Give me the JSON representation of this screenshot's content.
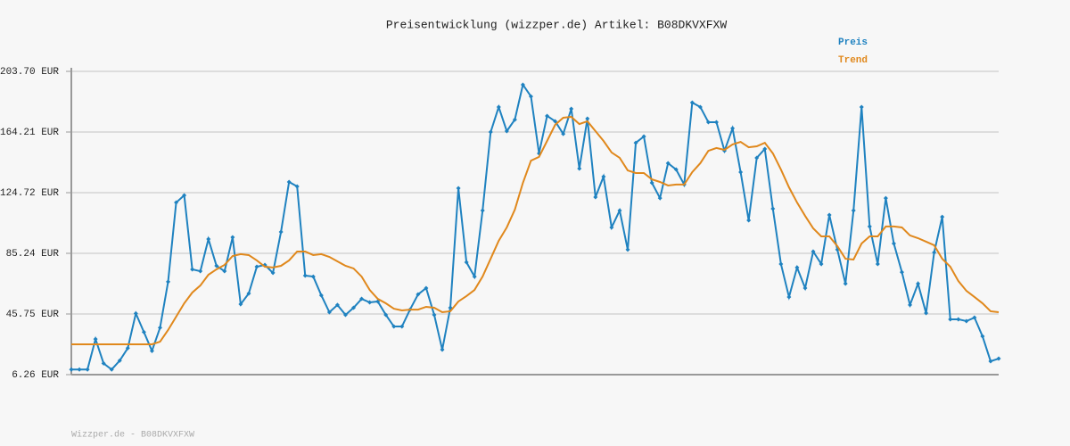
{
  "chart_data": {
    "type": "line",
    "title": "Preisentwicklung (wizzper.de) Artikel: B08DKVXFXW",
    "footer": "Wizzper.de - B08DKVXFXW",
    "ylim": [
      6.26,
      203.7
    ],
    "yticks": [
      {
        "value": 6.26,
        "label": "6.26 EUR"
      },
      {
        "value": 45.75,
        "label": "45.75 EUR"
      },
      {
        "value": 85.24,
        "label": "85.24 EUR"
      },
      {
        "value": 124.72,
        "label": "124.72 EUR"
      },
      {
        "value": 164.21,
        "label": "164.21 EUR"
      },
      {
        "value": 203.7,
        "label": "203.70 EUR"
      }
    ],
    "grid": true,
    "legend": "top-right",
    "series": [
      {
        "name": "Preis",
        "color": "#1f82c0",
        "markers": true,
        "values": [
          9.6,
          9.6,
          9.6,
          29.4,
          13.6,
          9.6,
          15.4,
          23.5,
          46.1,
          34.0,
          21.7,
          36.8,
          66.7,
          118.3,
          123.0,
          74.8,
          73.6,
          94.5,
          77.1,
          73.6,
          95.7,
          52.1,
          59.1,
          76.5,
          77.7,
          72.5,
          99.2,
          131.7,
          128.8,
          70.7,
          70.1,
          57.9,
          46.9,
          51.6,
          45.2,
          49.8,
          55.6,
          53.3,
          53.9,
          45.2,
          37.6,
          37.6,
          48.6,
          58.5,
          62.6,
          45.2,
          22.5,
          49.8,
          127.6,
          79.4,
          70.1,
          113.1,
          164.2,
          180.5,
          164.8,
          172.3,
          195.0,
          187.4,
          150.3,
          174.7,
          171.2,
          163.0,
          179.3,
          140.4,
          172.9,
          121.8,
          135.2,
          102.1,
          113.1,
          87.6,
          157.2,
          161.3,
          131.1,
          121.2,
          143.9,
          139.8,
          130.0,
          183.4,
          180.5,
          170.6,
          170.6,
          152.0,
          166.6,
          138.1,
          106.7,
          147.4,
          153.2,
          114.3,
          78.3,
          56.8,
          76.0,
          62.6,
          86.4,
          78.3,
          110.2,
          87.6,
          65.5,
          113.1,
          180.5,
          102.7,
          78.3,
          121.2,
          91.6,
          73.0,
          51.6,
          65.5,
          46.3,
          85.8,
          109.0,
          42.3,
          42.3,
          41.1,
          43.4,
          31.2,
          15.0,
          16.7
        ]
      },
      {
        "name": "Trend",
        "color": "#e0881c",
        "markers": false,
        "values": [
          26.0,
          26.0,
          26.0,
          26.0,
          26.0,
          26.0,
          26.0,
          26.0,
          26.0,
          26.0,
          26.0,
          27.7,
          35.3,
          44.0,
          52.7,
          59.7,
          64.3,
          71.3,
          74.8,
          77.7,
          83.5,
          84.7,
          84.1,
          80.6,
          76.5,
          76.0,
          77.1,
          80.6,
          86.4,
          86.4,
          84.1,
          84.7,
          82.9,
          80.0,
          77.1,
          75.4,
          70.1,
          61.4,
          55.6,
          52.7,
          49.2,
          48.1,
          48.6,
          48.6,
          50.4,
          49.8,
          46.9,
          47.5,
          53.9,
          57.4,
          61.4,
          70.1,
          81.7,
          93.4,
          102.1,
          113.7,
          131.1,
          145.6,
          148.0,
          158.4,
          168.9,
          173.5,
          174.1,
          169.4,
          171.2,
          164.8,
          158.4,
          150.9,
          147.4,
          139.2,
          137.5,
          137.5,
          133.4,
          131.7,
          129.4,
          130.0,
          130.0,
          138.1,
          143.9,
          152.0,
          153.8,
          152.6,
          156.1,
          157.8,
          154.3,
          154.9,
          157.2,
          150.3,
          139.8,
          128.2,
          118.3,
          109.6,
          101.5,
          96.3,
          96.3,
          89.9,
          81.7,
          81.2,
          91.6,
          96.3,
          96.3,
          102.7,
          102.7,
          102.1,
          96.9,
          95.1,
          92.8,
          90.5,
          81.7,
          76.5,
          67.2,
          60.8,
          56.8,
          52.7,
          47.5,
          46.9
        ]
      }
    ]
  }
}
